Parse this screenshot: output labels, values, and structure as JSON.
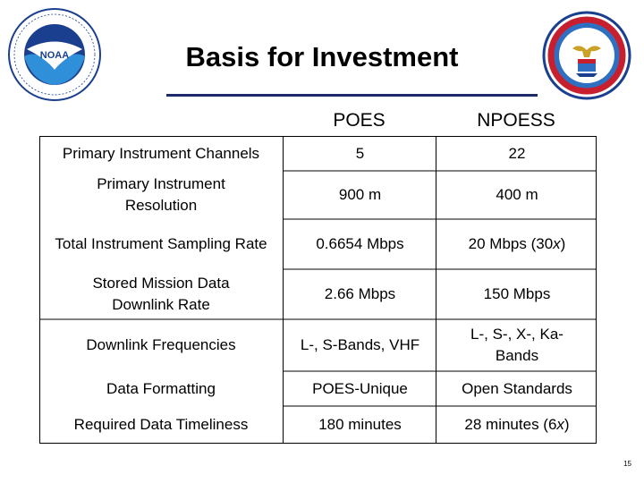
{
  "slide": {
    "title": "Basis for Investment",
    "page_number": "15"
  },
  "logos": {
    "left": "noaa-logo",
    "right": "department-of-commerce-seal"
  },
  "table": {
    "headers": [
      "POES",
      "NPOESS"
    ],
    "rows": [
      {
        "label": "Primary Instrument Channels",
        "poes": "5",
        "npoess": "22"
      },
      {
        "label": "Primary Instrument Resolution",
        "poes": "900 m",
        "npoess": "400 m"
      },
      {
        "label": "Total Instrument Sampling Rate",
        "poes": "0.6654 Mbps",
        "npoess_main": "20 Mbps (30",
        "npoess_italic": "x",
        "npoess_tail": ")"
      },
      {
        "label": "Stored Mission Data Downlink Rate",
        "poes": "2.66 Mbps",
        "npoess": "150 Mbps"
      },
      {
        "label": "Downlink Frequencies",
        "poes": "L-, S-Bands, VHF",
        "npoess": "L-, S-, X-, Ka-Bands"
      },
      {
        "label": "Data Formatting",
        "poes": "POES-Unique",
        "npoess": "Open Standards"
      },
      {
        "label": "Required Data Timeliness",
        "poes": "180 minutes",
        "npoess_main": "28 minutes (6",
        "npoess_italic": "x",
        "npoess_tail": ")"
      }
    ]
  }
}
